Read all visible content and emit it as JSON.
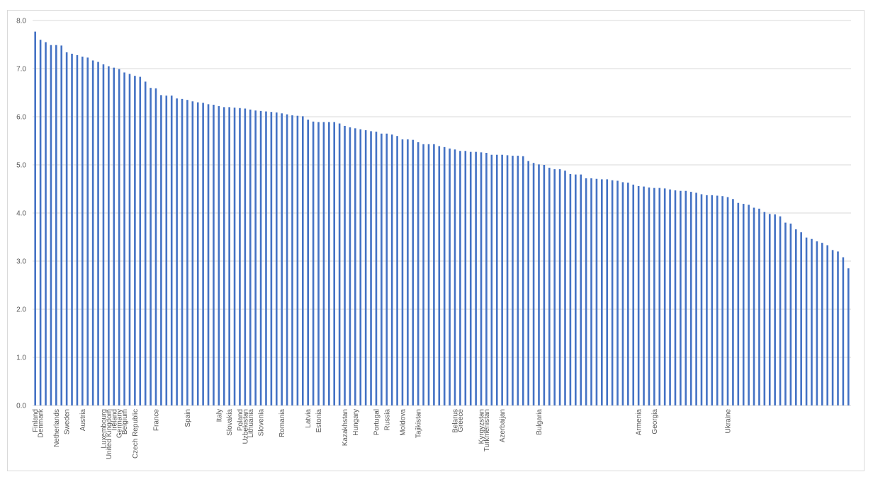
{
  "chart_data": {
    "type": "bar",
    "color": "#4472c4",
    "grid": true,
    "ylim": [
      0,
      8
    ],
    "yticks": [
      {
        "value": 0,
        "label": "0.0"
      },
      {
        "value": 1,
        "label": "1.0"
      },
      {
        "value": 2,
        "label": "2.0"
      },
      {
        "value": 3,
        "label": "3.0"
      },
      {
        "value": 4,
        "label": "4.0"
      },
      {
        "value": 5,
        "label": "5.0"
      },
      {
        "value": 6,
        "label": "6.0"
      },
      {
        "value": 7,
        "label": "7.0"
      },
      {
        "value": 8,
        "label": "8.0"
      }
    ],
    "categories": [
      "Finland",
      "Denmark",
      null,
      null,
      "Netherlands",
      null,
      "Sweden",
      null,
      null,
      "Austria",
      null,
      null,
      null,
      "Luxembourg",
      "United Kingdom",
      "Ireland",
      "Germany",
      "Belgium",
      null,
      "Czech Republic",
      null,
      null,
      null,
      "France",
      null,
      null,
      null,
      null,
      null,
      "Spain",
      null,
      null,
      null,
      null,
      null,
      "Italy",
      null,
      "Slovakia",
      null,
      "Poland",
      "Uzbekistan",
      "Lithuania",
      null,
      "Slovenia",
      null,
      null,
      null,
      "Romania",
      null,
      null,
      null,
      null,
      "Latvia",
      null,
      "Estonia",
      null,
      null,
      null,
      null,
      "Kazakhstan",
      null,
      "Hungary",
      null,
      null,
      null,
      "Portugal",
      null,
      "Russia",
      null,
      null,
      "Moldova",
      null,
      null,
      "Tajikistan",
      null,
      null,
      null,
      null,
      null,
      null,
      "Belarus",
      "Greece",
      null,
      null,
      null,
      "Kyrgyzstan",
      "Turkmenistan",
      null,
      null,
      "Azerbaijan",
      null,
      null,
      null,
      null,
      null,
      null,
      "Bulgaria",
      null,
      null,
      null,
      null,
      null,
      null,
      null,
      null,
      null,
      null,
      null,
      null,
      null,
      null,
      null,
      null,
      null,
      null,
      "Armenia",
      null,
      null,
      "Georgia",
      null,
      null,
      null,
      null,
      null,
      null,
      null,
      null,
      null,
      null,
      null,
      null,
      null,
      "Ukraine",
      null,
      null,
      null,
      null,
      null,
      null,
      null,
      null,
      null,
      null,
      null,
      null,
      null,
      null,
      null,
      null,
      null,
      null,
      null,
      null,
      null,
      null,
      null
    ],
    "values": [
      7.77,
      7.6,
      7.55,
      7.49,
      7.49,
      7.48,
      7.34,
      7.31,
      7.28,
      7.25,
      7.23,
      7.17,
      7.14,
      7.09,
      7.05,
      7.02,
      6.99,
      6.92,
      6.89,
      6.85,
      6.83,
      6.73,
      6.6,
      6.59,
      6.45,
      6.44,
      6.44,
      6.38,
      6.37,
      6.35,
      6.32,
      6.3,
      6.29,
      6.26,
      6.25,
      6.22,
      6.2,
      6.2,
      6.19,
      6.18,
      6.17,
      6.15,
      6.13,
      6.12,
      6.11,
      6.1,
      6.09,
      6.07,
      6.05,
      6.03,
      6.02,
      6.01,
      5.94,
      5.9,
      5.89,
      5.89,
      5.89,
      5.89,
      5.86,
      5.81,
      5.78,
      5.76,
      5.74,
      5.72,
      5.7,
      5.69,
      5.65,
      5.65,
      5.63,
      5.6,
      5.53,
      5.53,
      5.52,
      5.47,
      5.43,
      5.43,
      5.43,
      5.39,
      5.37,
      5.34,
      5.32,
      5.29,
      5.29,
      5.27,
      5.27,
      5.26,
      5.25,
      5.21,
      5.21,
      5.21,
      5.2,
      5.19,
      5.19,
      5.18,
      5.08,
      5.04,
      5.01,
      5.0,
      4.94,
      4.91,
      4.91,
      4.88,
      4.81,
      4.8,
      4.8,
      4.72,
      4.72,
      4.71,
      4.7,
      4.7,
      4.68,
      4.67,
      4.64,
      4.63,
      4.59,
      4.56,
      4.55,
      4.53,
      4.52,
      4.52,
      4.51,
      4.49,
      4.47,
      4.46,
      4.46,
      4.44,
      4.42,
      4.39,
      4.37,
      4.37,
      4.36,
      4.35,
      4.33,
      4.29,
      4.21,
      4.19,
      4.17,
      4.11,
      4.09,
      4.02,
      3.98,
      3.97,
      3.93,
      3.8,
      3.78,
      3.66,
      3.6,
      3.49,
      3.46,
      3.41,
      3.38,
      3.33,
      3.23,
      3.2,
      3.08,
      2.85
    ]
  }
}
